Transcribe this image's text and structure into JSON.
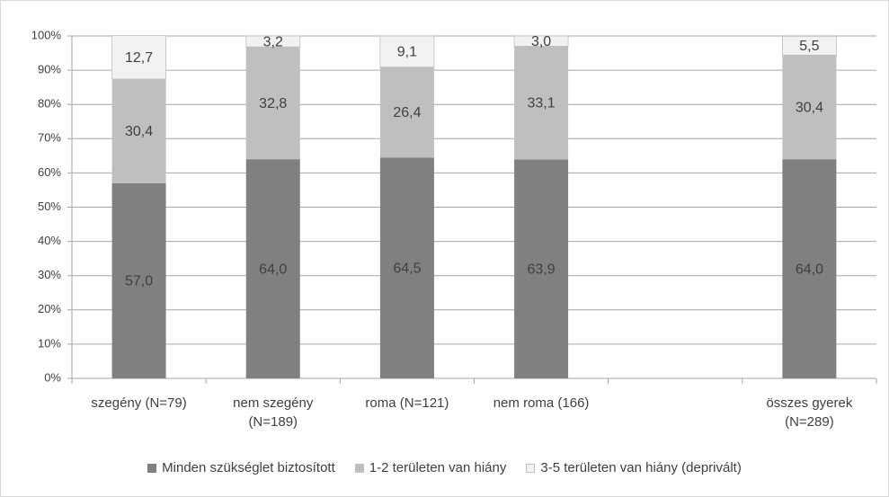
{
  "chart_data": {
    "type": "stacked_bar",
    "categories": [
      "szegény (N=79)",
      "nem szegény (N=189)",
      "roma (N=121)",
      "nem roma (166)",
      null,
      "összes gyerek (N=289)"
    ],
    "series": [
      {
        "name": "Minden szükséglet biztosított",
        "color": "#808080",
        "values": [
          57.0,
          64.0,
          64.5,
          63.9,
          null,
          64.0
        ],
        "value_labels": [
          "57,0",
          "64,0",
          "64,5",
          "63,9",
          null,
          "64,0"
        ]
      },
      {
        "name": "1-2 területen van hiány",
        "color": "#bfbfbf",
        "values": [
          30.4,
          32.8,
          26.4,
          33.1,
          null,
          30.4
        ],
        "value_labels": [
          "30,4",
          "32,8",
          "26,4",
          "33,1",
          null,
          "30,4"
        ]
      },
      {
        "name": "3-5 területen van hiány (deprivált)",
        "color": "#f2f2f2",
        "values": [
          12.7,
          3.2,
          9.1,
          3.0,
          null,
          5.5
        ],
        "value_labels": [
          "12,7",
          "3,2",
          "9,1",
          "3,0",
          null,
          "5,5"
        ]
      }
    ],
    "ylim": [
      0,
      100
    ],
    "yticks": [
      {
        "value": 0,
        "label": "0%"
      },
      {
        "value": 10,
        "label": "10%"
      },
      {
        "value": 20,
        "label": "20%"
      },
      {
        "value": 30,
        "label": "30%"
      },
      {
        "value": 40,
        "label": "40%"
      },
      {
        "value": 50,
        "label": "50%"
      },
      {
        "value": 60,
        "label": "60%"
      },
      {
        "value": 70,
        "label": "70%"
      },
      {
        "value": 80,
        "label": "80%"
      },
      {
        "value": 90,
        "label": "90%"
      },
      {
        "value": 100,
        "label": "100%"
      }
    ],
    "grid": true,
    "legend": "bottom"
  }
}
